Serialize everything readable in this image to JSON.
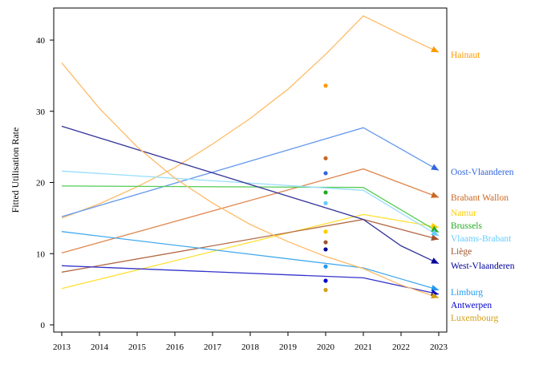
{
  "chart_data": {
    "type": "line",
    "title": "",
    "xlabel": "",
    "ylabel": "Fitted Utilisation Rate",
    "xlim": [
      2013,
      2023
    ],
    "ylim": [
      0,
      45
    ],
    "x_ticks": [
      2013,
      2014,
      2015,
      2016,
      2017,
      2018,
      2019,
      2020,
      2021,
      2022,
      2023
    ],
    "y_ticks": [
      0,
      10,
      20,
      30,
      40
    ],
    "grid": false,
    "legend": "labels at right end of each line",
    "series": [
      {
        "name": "Hainaut",
        "color": "#ff9900",
        "line_color": "#ffbb66",
        "x": [
          2013,
          2014,
          2015,
          2016,
          2017,
          2018,
          2019,
          2020,
          2021,
          2022,
          2023
        ],
        "values": [
          15.0,
          17.0,
          19.4,
          22.1,
          25.4,
          29.0,
          33.1,
          38.0,
          43.4,
          40.8,
          38.3
        ],
        "point_2020": 33.6
      },
      {
        "name": "Oost-Vlaanderen",
        "color": "#3366dd",
        "line_color": "#6699ee",
        "x": [
          2013,
          2021,
          2023
        ],
        "values": [
          15.2,
          27.7,
          21.7
        ],
        "point_2020": 21.3
      },
      {
        "name": "Brabant Wallon",
        "color": "#cc6622",
        "line_color": "#e08850",
        "x": [
          2013,
          2021,
          2023
        ],
        "values": [
          10.1,
          21.9,
          17.9
        ],
        "point_2020": 23.4
      },
      {
        "name": "Namur",
        "color": "#ffcc00",
        "line_color": "#ffe033",
        "x": [
          2013,
          2021,
          2023
        ],
        "values": [
          5.1,
          15.5,
          13.7
        ],
        "point_2020": 13.1
      },
      {
        "name": "Brussels",
        "color": "#22aa22",
        "line_color": "#55cc55",
        "x": [
          2013,
          2021,
          2023
        ],
        "values": [
          19.5,
          19.3,
          13.0
        ],
        "point_2020": 18.6
      },
      {
        "name": "Liège",
        "color": "#a0522d",
        "line_color": "#b36a45",
        "x": [
          2013,
          2021,
          2023
        ],
        "values": [
          7.4,
          14.8,
          12.0
        ],
        "point_2020": 11.6
      },
      {
        "name": "Vlaams-Brabant",
        "color": "#66ccff",
        "line_color": "#99ddff",
        "x": [
          2013,
          2021,
          2023
        ],
        "values": [
          21.6,
          18.9,
          12.5
        ],
        "point_2020": 17.1
      },
      {
        "name": "West-Vlaanderen",
        "color": "#000099",
        "line_color": "#333399",
        "x": [
          2013,
          2021,
          2022,
          2023
        ],
        "values": [
          27.9,
          14.8,
          11.1,
          8.6
        ],
        "point_2020": 10.6
      },
      {
        "name": "Limburg",
        "color": "#2299ee",
        "line_color": "#44aaee",
        "x": [
          2013,
          2021,
          2023
        ],
        "values": [
          13.1,
          8.0,
          4.9
        ],
        "point_2020": 8.2
      },
      {
        "name": "Antwerpen",
        "color": "#0000cc",
        "line_color": "#3333cc",
        "x": [
          2013,
          2021,
          2023
        ],
        "values": [
          8.3,
          6.6,
          4.3
        ],
        "point_2020": 6.2
      },
      {
        "name": "Luxembourg",
        "color": "#d4a017",
        "line_color": "#ffbb66",
        "x": [
          2013,
          2014,
          2015,
          2016,
          2017,
          2018,
          2019,
          2020,
          2021,
          2022,
          2023
        ],
        "values": [
          36.8,
          30.4,
          25.0,
          20.6,
          17.1,
          14.1,
          11.7,
          9.6,
          7.9,
          5.6,
          3.8
        ],
        "point_2020": 4.9
      }
    ]
  }
}
